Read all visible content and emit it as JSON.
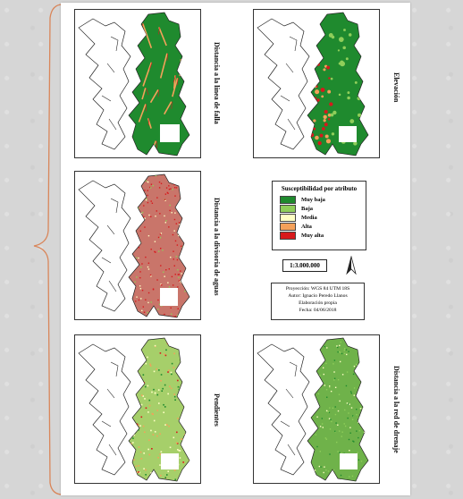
{
  "maps": [
    {
      "id": "falla",
      "label": "Distancia a la línea de falla",
      "style": "green-lines"
    },
    {
      "id": "elevacion",
      "label": "Elevación",
      "style": "green-elev"
    },
    {
      "id": "divisoria",
      "label": "Distancia a la divisoria de aguas",
      "style": "red"
    },
    {
      "id": "pendientes",
      "label": "Pendientes",
      "style": "mixed"
    },
    {
      "id": "drenaje",
      "label": "Distancia a la red de drenaje",
      "style": "green-noise"
    }
  ],
  "legend": {
    "title": "Susceptibilidad por atributo",
    "classes": [
      {
        "label": "Muy baja",
        "color": "#1f8a2e"
      },
      {
        "label": "Baja",
        "color": "#8fce5a"
      },
      {
        "label": "Media",
        "color": "#ffffc4"
      },
      {
        "label": "Alta",
        "color": "#f4a15a"
      },
      {
        "label": "Muy alta",
        "color": "#d7191c"
      }
    ]
  },
  "scale": "1:3.000.000",
  "info": {
    "line1": "Proyección: WGS 84 UTM 18S",
    "line2": "Autor: Ignacio Peredo Llanos",
    "line3": "Elaboración propia",
    "line4": "Fecha: 04/06/2018"
  }
}
